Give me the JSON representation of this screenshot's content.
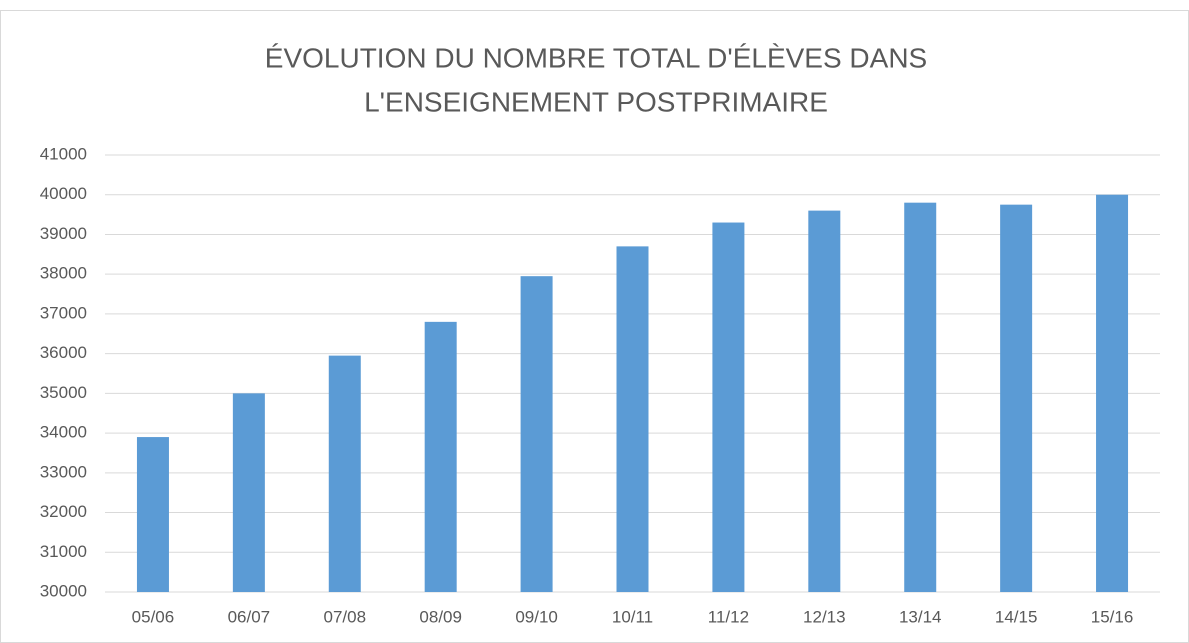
{
  "chart_data": {
    "type": "bar",
    "title": [
      "ÉVOLUTION DU NOMBRE TOTAL D'ÉLÈVES DANS",
      "L'ENSEIGNEMENT POSTPRIMAIRE"
    ],
    "categories": [
      "05/06",
      "06/07",
      "07/08",
      "08/09",
      "09/10",
      "10/11",
      "11/12",
      "12/13",
      "13/14",
      "14/15",
      "15/16"
    ],
    "values": [
      33900,
      35000,
      35950,
      36800,
      37950,
      38700,
      39300,
      39600,
      39800,
      39750,
      40000
    ],
    "color": "#5b9bd5",
    "ylim": [
      30000,
      41000
    ],
    "yticks": [
      30000,
      31000,
      32000,
      33000,
      34000,
      35000,
      36000,
      37000,
      38000,
      39000,
      40000,
      41000
    ],
    "grid": true
  }
}
